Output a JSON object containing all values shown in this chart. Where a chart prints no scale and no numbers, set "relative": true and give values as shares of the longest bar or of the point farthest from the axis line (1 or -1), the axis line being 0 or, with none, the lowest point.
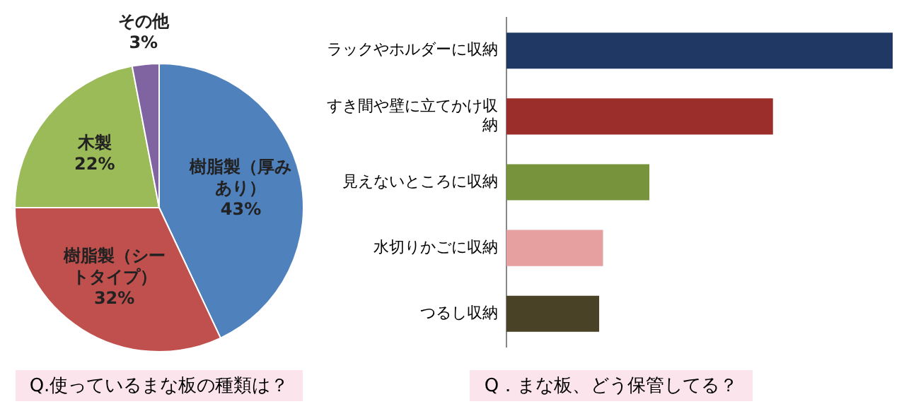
{
  "chart_data": [
    {
      "type": "pie",
      "title": "Q.使っているまな板の種類は？",
      "categories": [
        "樹脂製（厚みあり）",
        "樹脂製（シートタイプ）",
        "木製",
        "その他"
      ],
      "values": [
        43,
        32,
        22,
        3
      ],
      "value_labels": [
        "43%",
        "32%",
        "22%",
        "3%"
      ],
      "colors": [
        "#4f81bd",
        "#c0504d",
        "#9bbb59",
        "#8064a2"
      ],
      "legend": false
    },
    {
      "type": "bar",
      "orientation": "horizontal",
      "relative": true,
      "title": "Q．まな板、どう保管してる？",
      "categories": [
        "ラックやホルダーに収納",
        "すき間や壁に立てかけ収納",
        "見えないところに収納",
        "水切りかごに収納",
        "つるし収納"
      ],
      "values": [
        1,
        0.69,
        0.37,
        0.25,
        0.24
      ],
      "colors": [
        "#1f3864",
        "#9b2d2a",
        "#77933c",
        "#e6a0a0",
        "#4a4226"
      ],
      "legend": false
    }
  ]
}
